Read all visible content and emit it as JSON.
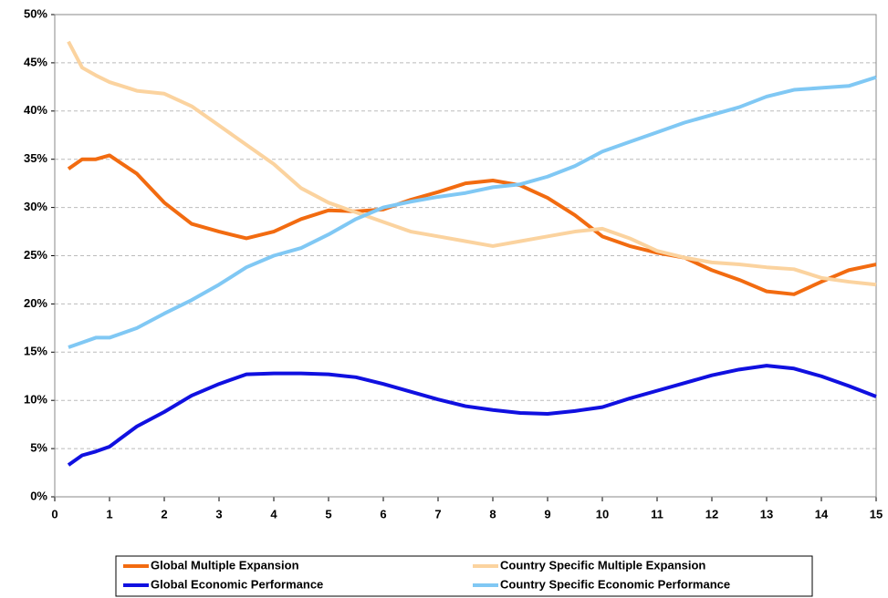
{
  "chart_data": {
    "type": "line",
    "x": [
      0.25,
      0.5,
      0.75,
      1,
      1.5,
      2,
      2.5,
      3,
      3.5,
      4,
      4.5,
      5,
      5.5,
      6,
      6.5,
      7,
      7.5,
      8,
      8.5,
      9,
      9.5,
      10,
      10.5,
      11,
      11.5,
      12,
      12.5,
      13,
      13.5,
      14,
      14.5,
      15
    ],
    "series": [
      {
        "name": "Global Multiple Expansion",
        "color": "#f26b10",
        "values": [
          34,
          35,
          35,
          35.4,
          33.5,
          30.5,
          28.3,
          27.5,
          26.8,
          27.5,
          28.8,
          29.7,
          29.6,
          29.8,
          30.8,
          31.6,
          32.5,
          32.8,
          32.3,
          31,
          29.2,
          27,
          26,
          25.3,
          24.8,
          23.5,
          22.5,
          21.3,
          21,
          22.3,
          23.5,
          24.1
        ]
      },
      {
        "name": "Country Specific Multiple Expansion",
        "color": "#fbd39f",
        "values": [
          47.2,
          44.5,
          43.7,
          43,
          42.1,
          41.8,
          40.5,
          38.5,
          36.5,
          34.5,
          32,
          30.5,
          29.5,
          28.5,
          27.5,
          27,
          26.5,
          26,
          26.5,
          27,
          27.5,
          27.8,
          26.8,
          25.5,
          24.8,
          24.3,
          24.1,
          23.8,
          23.6,
          22.7,
          22.3,
          22
        ]
      },
      {
        "name": "Global Economic Performance",
        "color": "#1010e0",
        "values": [
          3.3,
          4.3,
          4.7,
          5.2,
          7.3,
          8.8,
          10.5,
          11.7,
          12.7,
          12.8,
          12.8,
          12.7,
          12.4,
          11.7,
          10.9,
          10.1,
          9.4,
          9,
          8.7,
          8.6,
          8.9,
          9.3,
          10.2,
          11,
          11.8,
          12.6,
          13.2,
          13.6,
          13.3,
          12.5,
          11.5,
          10.4
        ]
      },
      {
        "name": "Country Specific Economic Performance",
        "color": "#80c8f4",
        "values": [
          15.5,
          16,
          16.5,
          16.5,
          17.5,
          19,
          20.4,
          22,
          23.8,
          25,
          25.8,
          27.2,
          28.8,
          30,
          30.6,
          31.1,
          31.5,
          32.1,
          32.4,
          33.2,
          34.3,
          35.8,
          36.8,
          37.8,
          38.8,
          39.6,
          40.4,
          41.5,
          42.2,
          42.4,
          42.6,
          43.5
        ]
      }
    ],
    "xlim": [
      0,
      15
    ],
    "xticks": [
      0,
      1,
      2,
      3,
      4,
      5,
      6,
      7,
      8,
      9,
      10,
      11,
      12,
      13,
      14,
      15
    ],
    "ylim": [
      0,
      50
    ],
    "yticks": [
      {
        "value": 0,
        "label": "0%"
      },
      {
        "value": 5,
        "label": "5%"
      },
      {
        "value": 10,
        "label": "10%"
      },
      {
        "value": 15,
        "label": "15%"
      },
      {
        "value": 20,
        "label": "20%"
      },
      {
        "value": 25,
        "label": "25%"
      },
      {
        "value": 30,
        "label": "30%"
      },
      {
        "value": 35,
        "label": "35%"
      },
      {
        "value": 40,
        "label": "40%"
      },
      {
        "value": 45,
        "label": "45%"
      },
      {
        "value": 50,
        "label": "50%"
      }
    ],
    "grid": true,
    "legend": "bottom"
  }
}
